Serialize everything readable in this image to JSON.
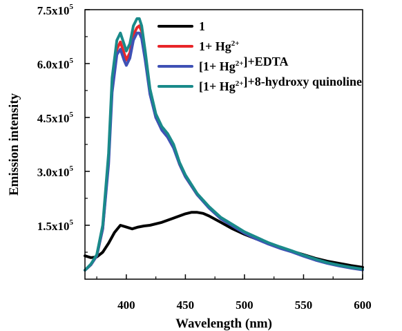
{
  "chart_data": {
    "type": "line",
    "xlabel": "Wavelength (nm)",
    "ylabel": "Emission intensity",
    "xlim": [
      365,
      600
    ],
    "ylim": [
      0,
      750000
    ],
    "x_ticks": [
      {
        "value": 400,
        "label": "400"
      },
      {
        "value": 450,
        "label": "450"
      },
      {
        "value": 500,
        "label": "500"
      },
      {
        "value": 550,
        "label": "550"
      },
      {
        "value": 600,
        "label": "600"
      }
    ],
    "y_ticks": [
      {
        "value": 150000,
        "mantissa": "1.5x10",
        "exp": "5"
      },
      {
        "value": 300000,
        "mantissa": "3.0x10",
        "exp": "5"
      },
      {
        "value": 450000,
        "mantissa": "4.5x10",
        "exp": "5"
      },
      {
        "value": 600000,
        "mantissa": "6.0x10",
        "exp": "5"
      },
      {
        "value": 750000,
        "mantissa": "7.5x10",
        "exp": "5"
      }
    ],
    "grid": false,
    "legend_position": "top-right",
    "series": [
      {
        "name": "1",
        "color": "#000000",
        "legend_parts": [
          {
            "t": "1"
          }
        ],
        "x": [
          365,
          370,
          375,
          380,
          385,
          390,
          395,
          400,
          405,
          410,
          415,
          420,
          430,
          440,
          450,
          455,
          460,
          465,
          470,
          480,
          490,
          500,
          510,
          520,
          530,
          540,
          550,
          560,
          570,
          580,
          590,
          600
        ],
        "y": [
          65000,
          60000,
          62000,
          75000,
          100000,
          130000,
          150000,
          145000,
          140000,
          145000,
          148000,
          150000,
          158000,
          170000,
          182000,
          186000,
          186000,
          183000,
          176000,
          158000,
          140000,
          125000,
          112000,
          100000,
          88000,
          78000,
          68000,
          58000,
          50000,
          44000,
          38000,
          33000
        ]
      },
      {
        "name": "1+ Hg2+",
        "color": "#e8262a",
        "legend_parts": [
          {
            "t": "1+ Hg"
          },
          {
            "t": "2+",
            "sup": true
          }
        ],
        "x": [
          365,
          370,
          375,
          380,
          385,
          388,
          392,
          395,
          398,
          400,
          403,
          406,
          409,
          411,
          413,
          416,
          420,
          425,
          430,
          435,
          440,
          445,
          450,
          460,
          470,
          480,
          490,
          500,
          510,
          520,
          530,
          540,
          550,
          560,
          570,
          580,
          590,
          600
        ],
        "y": [
          25000,
          40000,
          65000,
          140000,
          330000,
          540000,
          640000,
          660000,
          630000,
          610000,
          630000,
          680000,
          700000,
          705000,
          690000,
          620000,
          520000,
          450000,
          420000,
          400000,
          370000,
          320000,
          285000,
          235000,
          200000,
          170000,
          150000,
          130000,
          115000,
          100000,
          88000,
          78000,
          66000,
          55000,
          45000,
          38000,
          32000,
          27000
        ]
      },
      {
        "name": "[1+ Hg2+]+EDTA",
        "color": "#3f51b5",
        "legend_parts": [
          {
            "t": "[1+ Hg"
          },
          {
            "t": "2+",
            "sup": true
          },
          {
            "t": "]+EDTA"
          }
        ],
        "x": [
          365,
          370,
          375,
          380,
          385,
          388,
          392,
          395,
          398,
          400,
          403,
          406,
          409,
          411,
          413,
          416,
          420,
          425,
          430,
          435,
          440,
          445,
          450,
          460,
          470,
          480,
          490,
          500,
          510,
          520,
          530,
          540,
          550,
          560,
          570,
          580,
          590,
          600
        ],
        "y": [
          25000,
          40000,
          65000,
          140000,
          320000,
          520000,
          625000,
          640000,
          610000,
          595000,
          615000,
          665000,
          685000,
          685000,
          670000,
          610000,
          515000,
          450000,
          415000,
          395000,
          365000,
          320000,
          285000,
          235000,
          198000,
          168000,
          148000,
          128000,
          112000,
          98000,
          86000,
          76000,
          64000,
          53000,
          44000,
          37000,
          31000,
          26000
        ]
      },
      {
        "name": "[1+ Hg2+]+8-hydroxy quinoline",
        "color": "#1a8a8a",
        "legend_parts": [
          {
            "t": "[1+ Hg"
          },
          {
            "t": "2+",
            "sup": true
          },
          {
            "t": "]+8-hydroxy quinoline"
          }
        ],
        "x": [
          365,
          370,
          375,
          380,
          385,
          388,
          392,
          395,
          398,
          400,
          403,
          406,
          409,
          411,
          413,
          416,
          420,
          425,
          430,
          435,
          440,
          445,
          450,
          460,
          470,
          480,
          490,
          500,
          510,
          520,
          530,
          540,
          550,
          560,
          570,
          580,
          590,
          600
        ],
        "y": [
          25000,
          42000,
          68000,
          150000,
          350000,
          560000,
          665000,
          685000,
          655000,
          635000,
          655000,
          705000,
          725000,
          725000,
          705000,
          635000,
          530000,
          460000,
          425000,
          405000,
          375000,
          325000,
          290000,
          238000,
          202000,
          172000,
          152000,
          132000,
          117000,
          102000,
          90000,
          79000,
          67000,
          56000,
          46000,
          39000,
          33000,
          28000
        ]
      }
    ]
  }
}
